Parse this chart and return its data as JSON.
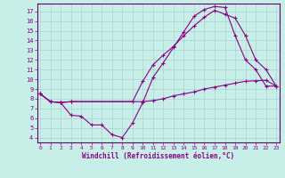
{
  "xlabel": "Windchill (Refroidissement éolien,°C)",
  "bg_color": "#c8eee8",
  "line_color": "#880088",
  "ylim": [
    3.5,
    17.8
  ],
  "xlim": [
    -0.3,
    23.3
  ],
  "yticks": [
    4,
    5,
    6,
    7,
    8,
    9,
    10,
    11,
    12,
    13,
    14,
    15,
    16,
    17
  ],
  "xticks": [
    0,
    1,
    2,
    3,
    4,
    5,
    6,
    7,
    8,
    9,
    10,
    11,
    12,
    13,
    14,
    15,
    16,
    17,
    18,
    19,
    20,
    21,
    22,
    23
  ],
  "series": [
    {
      "x": [
        0,
        1,
        2,
        3,
        10,
        11,
        12,
        13,
        14,
        15,
        16,
        17,
        18,
        19,
        20,
        21,
        22,
        23
      ],
      "y": [
        8.5,
        7.7,
        7.6,
        7.7,
        7.7,
        7.8,
        8.0,
        8.3,
        8.5,
        8.7,
        9.0,
        9.2,
        9.4,
        9.6,
        9.8,
        9.85,
        9.9,
        9.3
      ]
    },
    {
      "x": [
        0,
        1,
        2,
        3,
        4,
        5,
        6,
        7,
        8,
        9,
        10,
        11,
        12,
        13,
        14,
        15,
        16,
        17,
        18,
        19,
        20,
        21,
        22,
        23
      ],
      "y": [
        8.5,
        7.7,
        7.6,
        6.3,
        6.2,
        5.3,
        5.3,
        4.3,
        4.0,
        5.5,
        7.6,
        10.2,
        11.7,
        13.3,
        14.9,
        16.5,
        17.2,
        17.5,
        17.4,
        14.5,
        12.0,
        11.0,
        9.3,
        9.3
      ]
    },
    {
      "x": [
        0,
        1,
        2,
        3,
        9,
        10,
        11,
        12,
        13,
        14,
        15,
        16,
        17,
        18,
        19,
        20,
        21,
        22,
        23
      ],
      "y": [
        8.5,
        7.7,
        7.6,
        7.7,
        7.7,
        9.8,
        11.5,
        12.5,
        13.4,
        14.5,
        15.5,
        16.4,
        17.1,
        16.7,
        16.3,
        14.5,
        12.0,
        11.0,
        9.3
      ]
    }
  ]
}
